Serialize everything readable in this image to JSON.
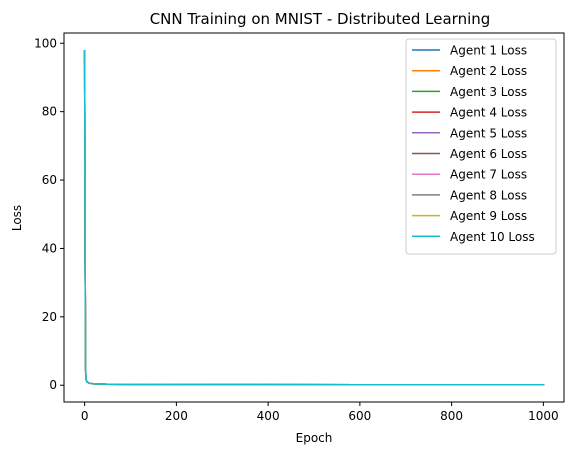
{
  "chart_data": {
    "type": "line",
    "title": "CNN Training on MNIST - Distributed Learning",
    "xlabel": "Epoch",
    "ylabel": "Loss",
    "xlim": [
      -45,
      1045
    ],
    "ylim": [
      -4.9,
      103
    ],
    "xticks": [
      0,
      200,
      400,
      600,
      800,
      1000
    ],
    "yticks": [
      0,
      20,
      40,
      60,
      80,
      100
    ],
    "grid": false,
    "legend_position": "top-right",
    "x": [
      0,
      1,
      2,
      3,
      5,
      10,
      20,
      50,
      100,
      200,
      400,
      600,
      800,
      1000
    ],
    "series": [
      {
        "name": "Agent 1 Loss",
        "color": "#1f77b4",
        "values": [
          97.8,
          40.0,
          5.0,
          1.8,
          1.0,
          0.6,
          0.4,
          0.3,
          0.25,
          0.2,
          0.18,
          0.16,
          0.15,
          0.15
        ]
      },
      {
        "name": "Agent 2 Loss",
        "color": "#ff7f0e",
        "values": [
          97.8,
          40.0,
          5.0,
          1.8,
          1.0,
          0.6,
          0.4,
          0.3,
          0.25,
          0.2,
          0.18,
          0.16,
          0.15,
          0.15
        ]
      },
      {
        "name": "Agent 3 Loss",
        "color": "#2ca02c",
        "values": [
          97.8,
          40.0,
          5.0,
          1.8,
          1.0,
          0.6,
          0.4,
          0.3,
          0.25,
          0.2,
          0.18,
          0.16,
          0.15,
          0.15
        ]
      },
      {
        "name": "Agent 4 Loss",
        "color": "#d62728",
        "values": [
          97.8,
          40.0,
          5.0,
          1.8,
          1.0,
          0.6,
          0.4,
          0.3,
          0.25,
          0.2,
          0.18,
          0.16,
          0.15,
          0.15
        ]
      },
      {
        "name": "Agent 5 Loss",
        "color": "#9467bd",
        "values": [
          97.8,
          40.0,
          5.0,
          1.8,
          1.0,
          0.6,
          0.4,
          0.3,
          0.25,
          0.2,
          0.18,
          0.16,
          0.15,
          0.15
        ]
      },
      {
        "name": "Agent 6 Loss",
        "color": "#8c564b",
        "values": [
          97.8,
          40.0,
          5.0,
          1.8,
          1.0,
          0.6,
          0.4,
          0.3,
          0.25,
          0.2,
          0.18,
          0.16,
          0.15,
          0.15
        ]
      },
      {
        "name": "Agent 7 Loss",
        "color": "#e377c2",
        "values": [
          97.8,
          40.0,
          5.0,
          1.8,
          1.0,
          0.6,
          0.4,
          0.3,
          0.25,
          0.2,
          0.18,
          0.16,
          0.15,
          0.15
        ]
      },
      {
        "name": "Agent 8 Loss",
        "color": "#7f7f7f",
        "values": [
          97.8,
          40.0,
          5.0,
          1.8,
          1.0,
          0.6,
          0.4,
          0.3,
          0.25,
          0.2,
          0.18,
          0.16,
          0.15,
          0.15
        ]
      },
      {
        "name": "Agent 9 Loss",
        "color": "#bcbd22",
        "values": [
          97.8,
          40.0,
          5.0,
          1.8,
          1.0,
          0.6,
          0.4,
          0.3,
          0.25,
          0.2,
          0.18,
          0.16,
          0.15,
          0.15
        ]
      },
      {
        "name": "Agent 10 Loss",
        "color": "#17becf",
        "values": [
          97.8,
          40.0,
          5.0,
          1.8,
          1.0,
          0.6,
          0.4,
          0.3,
          0.25,
          0.2,
          0.18,
          0.16,
          0.15,
          0.15
        ]
      }
    ]
  }
}
